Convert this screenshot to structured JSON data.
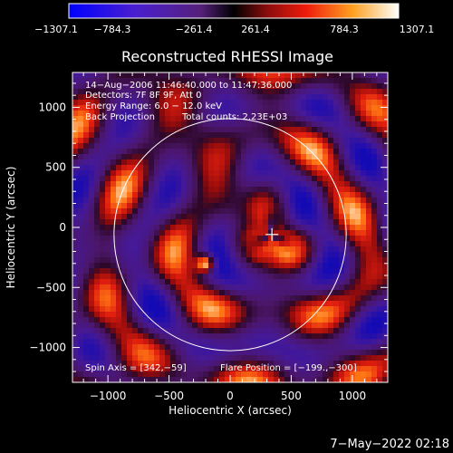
{
  "colorbar": {
    "tick_labels": [
      "−1307.1",
      "−784.3",
      "−261.4",
      "261.4",
      "784.3",
      "1307.1"
    ],
    "range": [
      -1307.1,
      1307.1
    ]
  },
  "title": "Reconstructed RHESSI Image",
  "info": {
    "line1": "14−Aug−2006 11:46:40.000 to 11:47:36.000",
    "line2": "Detectors: 7F 8F 9F, Att 0",
    "line3": "Energy Range: 6.0 − 12.0 keV",
    "line4_left": "Back Projection",
    "line4_right": "Total counts: 2.23E+03"
  },
  "footer_left": "Spin Axis = [342,−59]",
  "footer_right": "Flare Position = [−199.,−300]",
  "timestamp": "7−May−2022 02:18",
  "chart_data": {
    "type": "heatmap",
    "title": "Reconstructed RHESSI Image",
    "xlabel": "Heliocentric X (arcsec)",
    "ylabel": "Heliocentric Y (arcsec)",
    "xlim": [
      -1290,
      1290
    ],
    "ylim": [
      -1290,
      1290
    ],
    "xticks": [
      -1000,
      -500,
      0,
      500,
      1000
    ],
    "yticks": [
      -1000,
      -500,
      0,
      500,
      1000
    ],
    "xtick_labels": [
      "−1000",
      "−500",
      "0",
      "500",
      "1000"
    ],
    "ytick_labels": [
      "−1000",
      "−500",
      "0",
      "500",
      "1000"
    ],
    "solar_limb_center": [
      0,
      -60
    ],
    "solar_limb_radius": 950,
    "spin_axis_marker": [
      342,
      -59
    ],
    "brightest_source": [
      -199,
      -300
    ],
    "value_range": [
      -1307.1,
      1307.1
    ]
  }
}
